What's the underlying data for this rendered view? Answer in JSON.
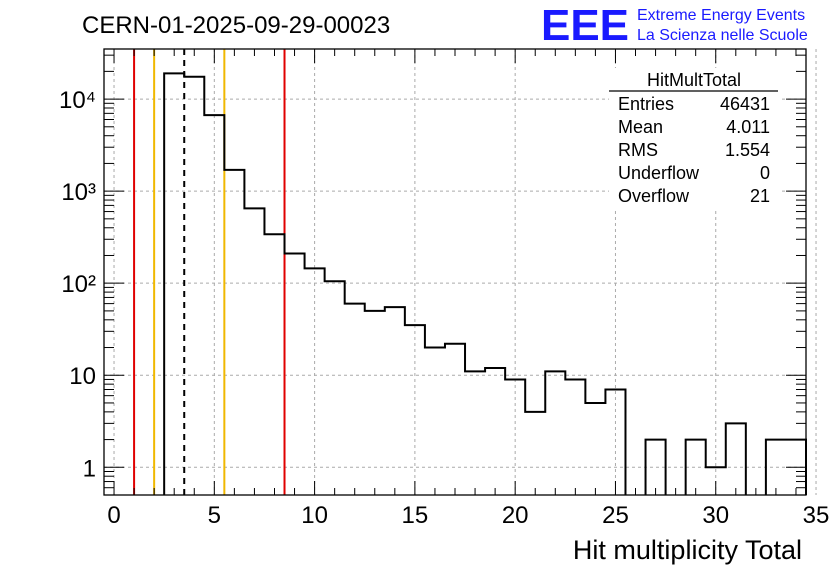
{
  "header": {
    "run_title": "CERN-01-2025-09-29-00023",
    "logo_text": "EEE",
    "logo_line1": "Extreme Energy Events",
    "logo_line2": "La Scienza nelle Scuole",
    "logo_color": "#1a1aff"
  },
  "stats": {
    "name": "HitMultTotal",
    "rows": [
      {
        "label": "Entries",
        "value": "46431"
      },
      {
        "label": "Mean",
        "value": "4.011"
      },
      {
        "label": "RMS",
        "value": "1.554"
      },
      {
        "label": "Underflow",
        "value": "0"
      },
      {
        "label": "Overflow",
        "value": "21"
      }
    ]
  },
  "chart_data": {
    "type": "histogram",
    "title": "CERN-01-2025-09-29-00023",
    "xlabel": "Hit multiplicity Total",
    "ylabel": "",
    "yscale": "log",
    "xlim": [
      -0.5,
      34.5
    ],
    "ylim": [
      0.5,
      35000
    ],
    "grid": true,
    "x_ticks": [
      0,
      5,
      10,
      15,
      20,
      25,
      30,
      35
    ],
    "x_tick_labels": [
      "0",
      "5",
      "10",
      "15",
      "20",
      "25",
      "30",
      "35"
    ],
    "y_ticks": [
      1,
      10,
      100,
      1000,
      10000
    ],
    "y_tick_labels": [
      "1",
      "10",
      "10²",
      "10³",
      "10⁴"
    ],
    "bin_width": 1,
    "bin_centers": [
      0,
      1,
      2,
      3,
      4,
      5,
      6,
      7,
      8,
      9,
      10,
      11,
      12,
      13,
      14,
      15,
      16,
      17,
      18,
      19,
      20,
      21,
      22,
      23,
      24,
      25,
      26,
      27,
      28,
      29,
      30,
      31,
      32,
      33,
      34
    ],
    "counts": [
      0,
      0,
      0,
      19000,
      17500,
      6700,
      1700,
      650,
      340,
      210,
      145,
      105,
      60,
      50,
      55,
      35,
      20,
      22,
      11,
      12,
      9,
      4,
      11,
      9,
      5,
      7,
      0,
      2,
      0,
      2,
      1,
      3,
      0,
      2,
      2
    ],
    "vertical_lines": [
      {
        "x": 1.0,
        "color": "#e00000",
        "style": "solid"
      },
      {
        "x": 2.0,
        "color": "#f0b800",
        "style": "solid"
      },
      {
        "x": 3.5,
        "color": "#000000",
        "style": "dashed"
      },
      {
        "x": 5.5,
        "color": "#f0b800",
        "style": "solid"
      },
      {
        "x": 8.5,
        "color": "#e00000",
        "style": "solid"
      }
    ],
    "line_color": "#000000",
    "grid_color": "#aaaaaa"
  }
}
